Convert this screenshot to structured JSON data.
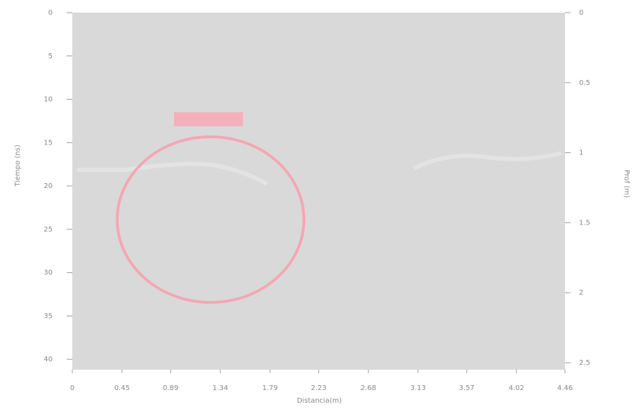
{
  "chart_data": {
    "type": "radargram",
    "x_label": "Distancia(m)",
    "y_label": "Tiempo (ns)",
    "y2_label": "Prof (m)",
    "xlim": [
      0,
      4.46
    ],
    "xticks": [
      0,
      0.45,
      0.89,
      1.34,
      1.79,
      2.23,
      2.68,
      3.13,
      3.57,
      4.02,
      4.46
    ],
    "ylim": [
      0,
      41.2
    ],
    "yticks": [
      0,
      5,
      10,
      15,
      20,
      25,
      30,
      35,
      40
    ],
    "y2lim": [
      0,
      2.55
    ],
    "y2ticks": [
      0,
      0.5,
      1,
      1.5,
      2,
      2.5
    ],
    "background": "#d9d9d9"
  }
}
